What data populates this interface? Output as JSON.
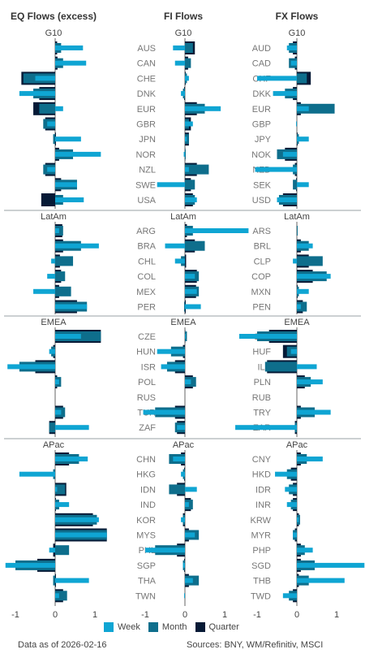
{
  "chart_data": {
    "type": "bar",
    "orientation": "horizontal",
    "panel_titles": [
      "EQ Flows (excess)",
      "FI Flows",
      "FX Flows"
    ],
    "section_titles": [
      "G10",
      "LatAm",
      "EMEA",
      "APac"
    ],
    "xlim": [
      -1.1,
      1.1
    ],
    "xticks": [
      "-1",
      "0",
      "1"
    ],
    "series": [
      {
        "name": "Week",
        "color": "#0fa5d3"
      },
      {
        "name": "Month",
        "color": "#0e6e8c"
      },
      {
        "name": "Quarter",
        "color": "#061a36"
      }
    ],
    "panels": [
      {
        "title": "EQ Flows (excess)",
        "sections": [
          {
            "title": "G10",
            "labels": [
              "AUS",
              "CAN",
              "CHE",
              "DNK",
              "EUR",
              "GBR",
              "JPN",
              "NOR",
              "NZL",
              "SWE",
              "USA"
            ],
            "values": [
              [
                0.7,
                0.15,
                0.05
              ],
              [
                0.78,
                0.2,
                0.06
              ],
              [
                -0.5,
                -0.8,
                -0.85
              ],
              [
                -0.9,
                -0.55,
                -0.4
              ],
              [
                0.2,
                -0.4,
                -0.55
              ],
              [
                -0.2,
                -0.3,
                -0.25
              ],
              [
                0.65,
                -0.05,
                0.02
              ],
              [
                1.15,
                0.45,
                0.1
              ],
              [
                -0.2,
                -0.3,
                -0.25
              ],
              [
                0.55,
                0.55,
                0.15
              ],
              [
                0.72,
                0.2,
                -0.35
              ]
            ]
          },
          {
            "title": "LatAm",
            "labels": [
              "ARG",
              "BRA",
              "CHL",
              "COL",
              "MEX",
              "PER"
            ],
            "values": [
              [
                0.1,
                0.2,
                0.18
              ],
              [
                1.1,
                0.65,
                0.2
              ],
              [
                -0.1,
                0.45,
                0.12
              ],
              [
                -0.2,
                0.25,
                0.15
              ],
              [
                -0.55,
                0.4,
                0.1
              ],
              [
                0.8,
                0.8,
                0.55
              ]
            ]
          },
          {
            "title": "EMEA",
            "labels": [
              "CZE",
              "HUN",
              "ISR",
              "POL",
              "RUS",
              "TUR",
              "ZAF"
            ],
            "values": [
              [
                0.65,
                1.15,
                1.15
              ],
              [
                -0.15,
                -0.1,
                -0.05
              ],
              [
                -1.2,
                -0.9,
                -0.5
              ],
              [
                0.1,
                0.15,
                0.05
              ],
              [
                0,
                0,
                0
              ],
              [
                0.15,
                0.25,
                0.2
              ],
              [
                0.85,
                -0.15,
                -0.15
              ]
            ]
          },
          {
            "title": "APac",
            "labels": [
              "CHN",
              "HKG",
              "IDN",
              "IND",
              "KOR",
              "MYS",
              "PHL",
              "SGP",
              "THA",
              "TWN"
            ],
            "values": [
              [
                0.82,
                0.6,
                0.35
              ],
              [
                -0.9,
                -0.05,
                0
              ],
              [
                0.05,
                0.25,
                0.28
              ],
              [
                0.35,
                0.1,
                0.02
              ],
              [
                1.1,
                1.05,
                0.95
              ],
              [
                1.3,
                1.3,
                1.3
              ],
              [
                -0.15,
                0.35,
                -0.05
              ],
              [
                -1.25,
                -1.0,
                -0.45
              ],
              [
                0.85,
                -0.05,
                0.02
              ],
              [
                0.1,
                0.3,
                0.2
              ]
            ]
          }
        ]
      },
      {
        "title": "FI Flows",
        "sections": [
          {
            "title": "G10",
            "labels": [
              "AUS",
              "CAN",
              "CHE",
              "DNK",
              "EUR",
              "GBR",
              "JPN",
              "NOR",
              "NZL",
              "SWE",
              "USA"
            ],
            "values": [
              [
                -0.3,
                0.2,
                0.25
              ],
              [
                -0.25,
                0.15,
                0.08
              ],
              [
                0.1,
                0.05,
                0.02
              ],
              [
                -0.1,
                -0.05,
                -0.02
              ],
              [
                0.9,
                0.5,
                0.3
              ],
              [
                0.2,
                0.1,
                0.15
              ],
              [
                0.05,
                0.1,
                0.1
              ],
              [
                -0.03,
                0.02,
                0.01
              ],
              [
                0.1,
                0.6,
                0.3
              ],
              [
                -0.7,
                0.25,
                0.15
              ],
              [
                0.3,
                0.25,
                0.2
              ]
            ]
          },
          {
            "title": "LatAm",
            "labels": [
              "ARG",
              "BRA",
              "CHL",
              "COL",
              "MEX",
              "PER"
            ],
            "values": [
              [
                1.6,
                0.2,
                0.05
              ],
              [
                -0.5,
                0.5,
                0.25
              ],
              [
                -0.25,
                -0.1,
                0.03
              ],
              [
                0.25,
                0.35,
                0.3
              ],
              [
                0.3,
                0.35,
                0.28
              ],
              [
                0.4,
                -0.02,
                0.02
              ]
            ]
          },
          {
            "title": "EMEA",
            "labels": [
              "CZE",
              "HUN",
              "ISR",
              "POL",
              "RUS",
              "TUR",
              "ZAF"
            ],
            "values": [
              [
                0.02,
                0.05,
                0.01
              ],
              [
                -0.7,
                -0.35,
                -0.05
              ],
              [
                -0.6,
                -0.45,
                -0.25
              ],
              [
                0.15,
                0.28,
                0.2
              ],
              [
                0,
                0,
                0
              ],
              [
                -1.05,
                -0.75,
                -0.25
              ],
              [
                -0.2,
                -0.25,
                -0.2
              ]
            ]
          },
          {
            "title": "APac",
            "labels": [
              "CHN",
              "HKG",
              "IDN",
              "IND",
              "KOR",
              "MYS",
              "PHL",
              "SGP",
              "THA",
              "TWN"
            ],
            "values": [
              [
                -0.3,
                -0.4,
                -0.1
              ],
              [
                -0.1,
                -0.05,
                -0.02
              ],
              [
                0.3,
                -0.4,
                -0.2
              ],
              [
                0.1,
                0.2,
                0.15
              ],
              [
                -0.1,
                -0.05,
                -0.05
              ],
              [
                0.25,
                0.35,
                0.1
              ],
              [
                -1.0,
                -0.75,
                -0.2
              ],
              [
                -0.05,
                -0.05,
                -0.02
              ],
              [
                0.2,
                0.35,
                0.1
              ],
              [
                -0.02,
                0.0,
                0.0
              ]
            ]
          }
        ]
      },
      {
        "title": "FX Flows",
        "sections": [
          {
            "title": "G10",
            "labels": [
              "AUD",
              "CAD",
              "CHF",
              "DKK",
              "EUR",
              "GBP",
              "JPY",
              "NOK",
              "NZD",
              "SEK",
              "USD"
            ],
            "values": [
              [
                -0.25,
                -0.2,
                -0.1
              ],
              [
                -0.15,
                -0.2,
                -0.05
              ],
              [
                -1.0,
                0.25,
                0.35
              ],
              [
                -0.6,
                -0.3,
                -0.1
              ],
              [
                0.3,
                0.95,
                0.1
              ],
              [
                -0.02,
                0.0,
                0.0
              ],
              [
                0.3,
                0.05,
                0.02
              ],
              [
                -0.35,
                -0.5,
                -0.3
              ],
              [
                -1.05,
                -0.1,
                -0.05
              ],
              [
                0.3,
                -0.1,
                -0.02
              ],
              [
                -0.5,
                -0.45,
                -0.35
              ]
            ]
          },
          {
            "title": "LatAm",
            "labels": [
              "ARS",
              "BRL",
              "CLP",
              "COP",
              "MXN",
              "PEN"
            ],
            "values": [
              [
                0.0,
                0.02,
                0.0
              ],
              [
                0.4,
                0.3,
                0.1
              ],
              [
                -0.1,
                0.65,
                0.3
              ],
              [
                0.85,
                0.75,
                0.4
              ],
              [
                0.3,
                0.05,
                0.02
              ],
              [
                0.1,
                0.25,
                0.15
              ]
            ]
          },
          {
            "title": "EMEA",
            "labels": [
              "CZK",
              "HUF",
              "ILS",
              "PLN",
              "RUB",
              "TRY",
              "ZAR"
            ],
            "values": [
              [
                -1.45,
                -1.0,
                -0.7
              ],
              [
                -0.15,
                -0.25,
                -0.35
              ],
              [
                0.5,
                -0.8,
                -0.75
              ],
              [
                0.65,
                0.35,
                0.2
              ],
              [
                0,
                0,
                0
              ],
              [
                0.85,
                0.45,
                0.1
              ],
              [
                -1.55,
                -0.05,
                -0.05
              ]
            ]
          },
          {
            "title": "APac",
            "labels": [
              "CNY",
              "HKD",
              "IDR",
              "INR",
              "KRW",
              "MYR",
              "PHP",
              "SGD",
              "THB",
              "TWD"
            ],
            "values": [
              [
                0.65,
                0.25,
                0.1
              ],
              [
                -0.55,
                -0.25,
                -0.15
              ],
              [
                -0.3,
                -0.2,
                -0.1
              ],
              [
                -0.25,
                -0.15,
                -0.1
              ],
              [
                0.05,
                0.08,
                0.05
              ],
              [
                -0.1,
                -0.1,
                -0.05
              ],
              [
                0.4,
                0.2,
                0.1
              ],
              [
                1.7,
                0.45,
                0.1
              ],
              [
                1.2,
                0.3,
                0.05
              ],
              [
                -0.35,
                -0.2,
                -0.1
              ]
            ]
          }
        ]
      }
    ]
  },
  "legend": {
    "week": "Week",
    "month": "Month",
    "quarter": "Quarter"
  },
  "footer": {
    "date": "Data as of 2026-02-16",
    "sources": "Sources:  BNY, WM/Refinitiv, MSCI"
  }
}
